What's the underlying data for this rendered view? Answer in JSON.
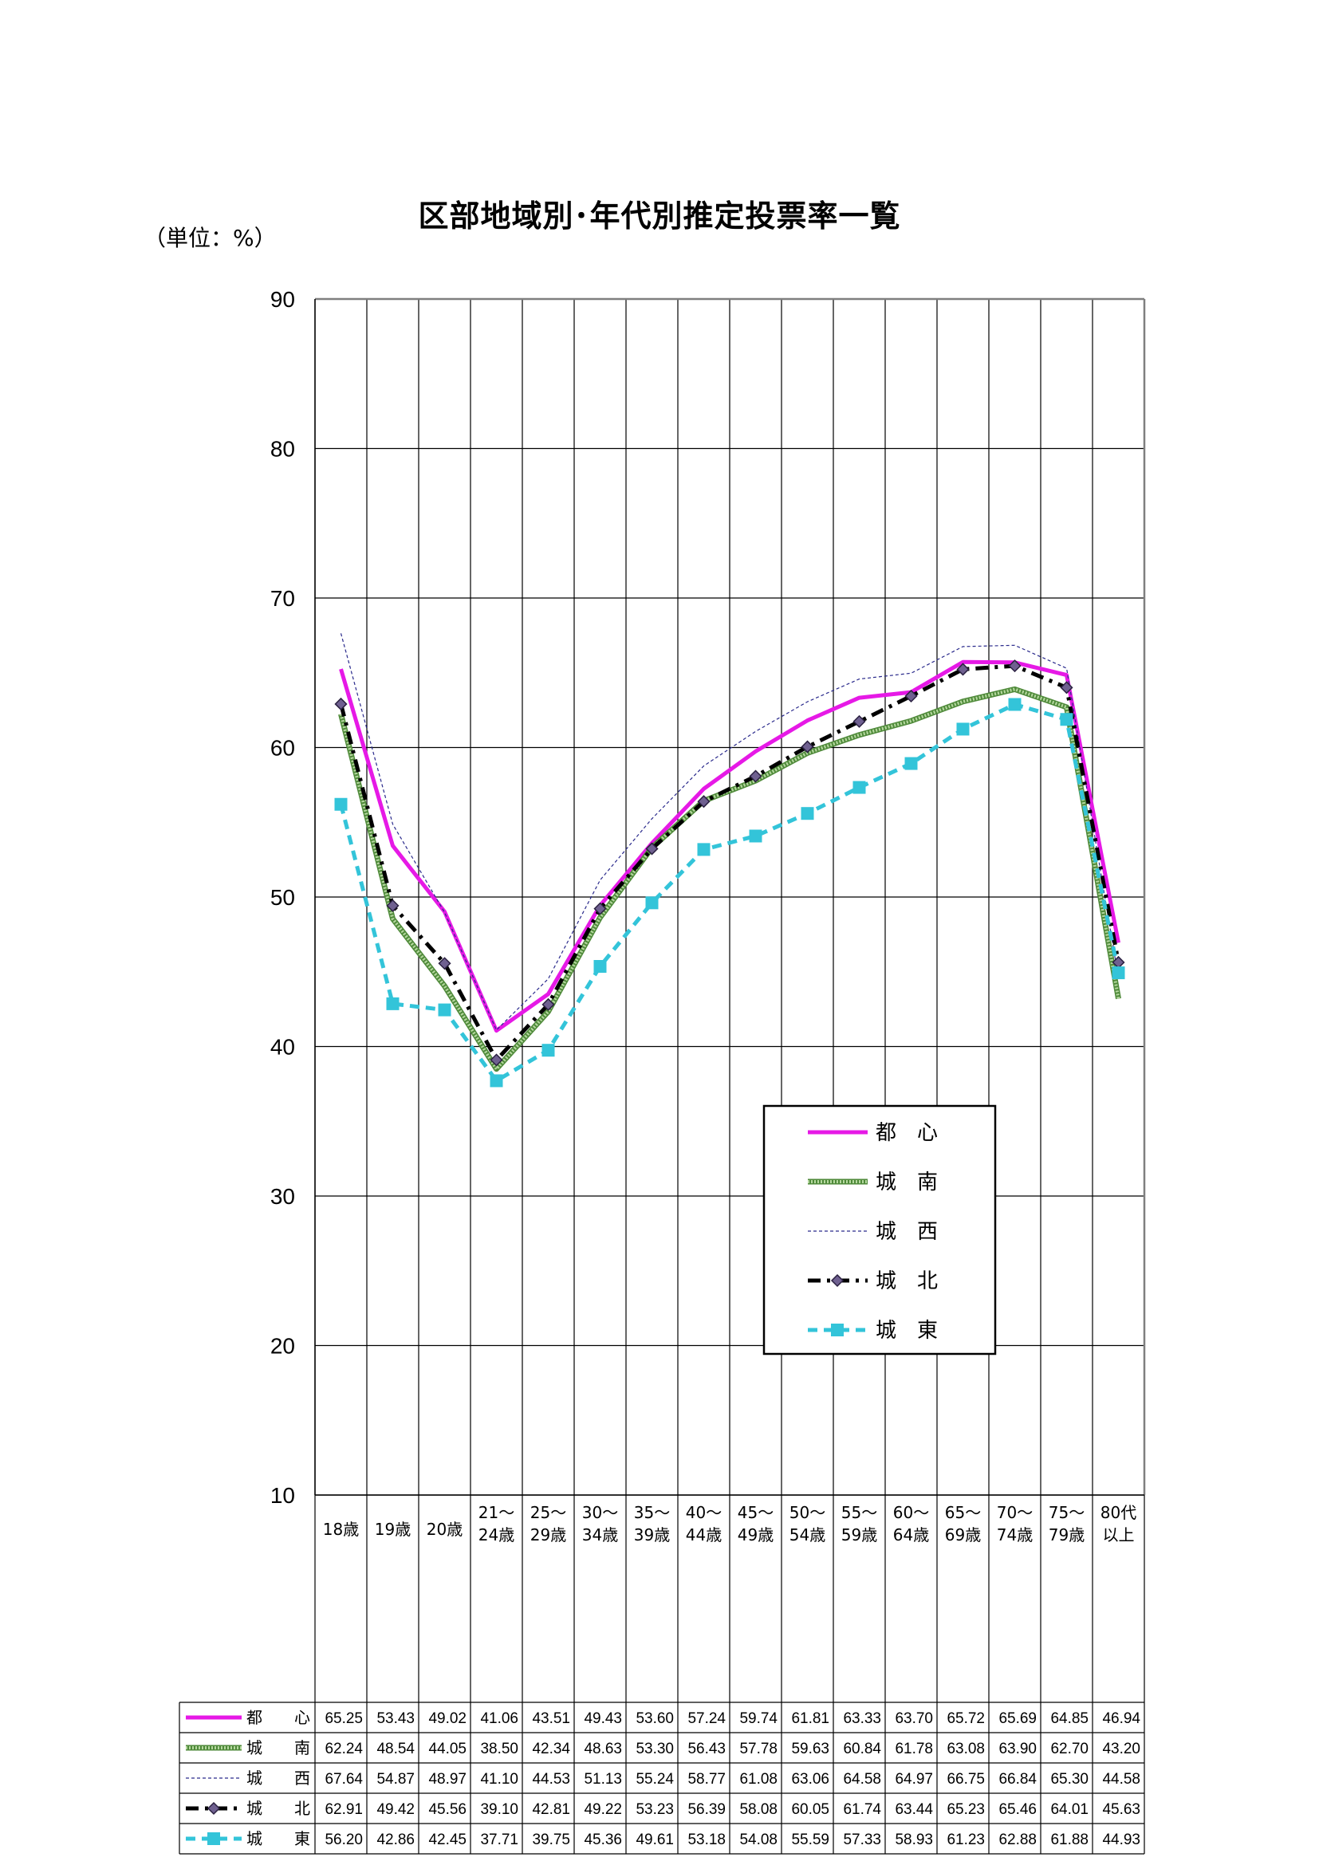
{
  "page": {
    "title": "区部地域別･年代別推定投票率一覧",
    "unit": "（単位：%）"
  },
  "chart_data": {
    "type": "line",
    "title": "区部地域別･年代別推定投票率一覧",
    "ylim": [
      10,
      90
    ],
    "yticks": [
      10,
      20,
      30,
      40,
      50,
      60,
      70,
      80,
      90
    ],
    "grid": true,
    "legend_position": "lower-right",
    "categories": [
      [
        "18歳"
      ],
      [
        "19歳"
      ],
      [
        "20歳"
      ],
      [
        "21～",
        "24歳"
      ],
      [
        "25～",
        "29歳"
      ],
      [
        "30～",
        "34歳"
      ],
      [
        "35～",
        "39歳"
      ],
      [
        "40～",
        "44歳"
      ],
      [
        "45～",
        "49歳"
      ],
      [
        "50～",
        "54歳"
      ],
      [
        "55～",
        "59歳"
      ],
      [
        "60～",
        "64歳"
      ],
      [
        "65～",
        "69歳"
      ],
      [
        "70～",
        "74歳"
      ],
      [
        "75～",
        "79歳"
      ],
      [
        "80代",
        "以上"
      ]
    ],
    "series": [
      {
        "name": "都　心",
        "color": "#e619e6",
        "style": "solid-thick",
        "values": [
          65.25,
          53.43,
          49.02,
          41.06,
          43.51,
          49.43,
          53.6,
          57.24,
          59.74,
          61.81,
          63.33,
          63.7,
          65.72,
          65.69,
          64.85,
          46.94
        ]
      },
      {
        "name": "城　南",
        "color": "#79a85a",
        "style": "hatched",
        "values": [
          62.24,
          48.54,
          44.05,
          38.5,
          42.34,
          48.63,
          53.3,
          56.43,
          57.78,
          59.63,
          60.84,
          61.78,
          63.08,
          63.9,
          62.7,
          43.2
        ]
      },
      {
        "name": "城　西",
        "color": "#2a2a8c",
        "style": "thin-dashed",
        "values": [
          67.64,
          54.87,
          48.97,
          41.1,
          44.53,
          51.13,
          55.24,
          58.77,
          61.08,
          63.06,
          64.58,
          64.97,
          66.75,
          66.84,
          65.3,
          44.58
        ]
      },
      {
        "name": "城　北",
        "color": "#000000",
        "style": "dash-dot-diamond",
        "values": [
          62.91,
          49.42,
          45.56,
          39.1,
          42.81,
          49.22,
          53.23,
          56.39,
          58.08,
          60.05,
          61.74,
          63.44,
          65.23,
          65.46,
          64.01,
          45.63
        ]
      },
      {
        "name": "城　東",
        "color": "#33c4d9",
        "style": "dashed-square",
        "values": [
          56.2,
          42.86,
          42.45,
          37.71,
          39.75,
          45.36,
          49.61,
          53.18,
          54.08,
          55.59,
          57.33,
          58.93,
          61.23,
          62.88,
          61.88,
          44.93
        ]
      }
    ]
  }
}
